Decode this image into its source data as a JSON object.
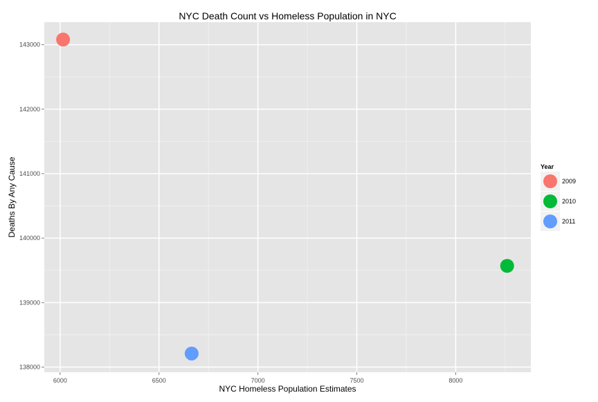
{
  "chart_data": {
    "type": "scatter",
    "title": "NYC Death Count vs Homeless Population in NYC",
    "xlabel": "NYC Homeless Population Estimates",
    "ylabel": "Deaths By Any Cause",
    "xlim": [
      5920,
      8380
    ],
    "ylim": [
      137920,
      143350
    ],
    "xticks": [
      6000,
      6500,
      7000,
      7500,
      8000
    ],
    "yticks": [
      138000,
      139000,
      140000,
      141000,
      142000,
      143000
    ],
    "grid": true,
    "legend": {
      "title": "Year",
      "placement": "right",
      "entries": [
        "2009",
        "2010",
        "2011"
      ]
    },
    "series": [
      {
        "name": "2009",
        "color": "#F8766D",
        "points": [
          {
            "x": 6015,
            "y": 143080
          }
        ]
      },
      {
        "name": "2010",
        "color": "#00BA38",
        "points": [
          {
            "x": 8260,
            "y": 139570
          }
        ]
      },
      {
        "name": "2011",
        "color": "#619CFF",
        "points": [
          {
            "x": 6665,
            "y": 138210
          }
        ]
      }
    ]
  }
}
